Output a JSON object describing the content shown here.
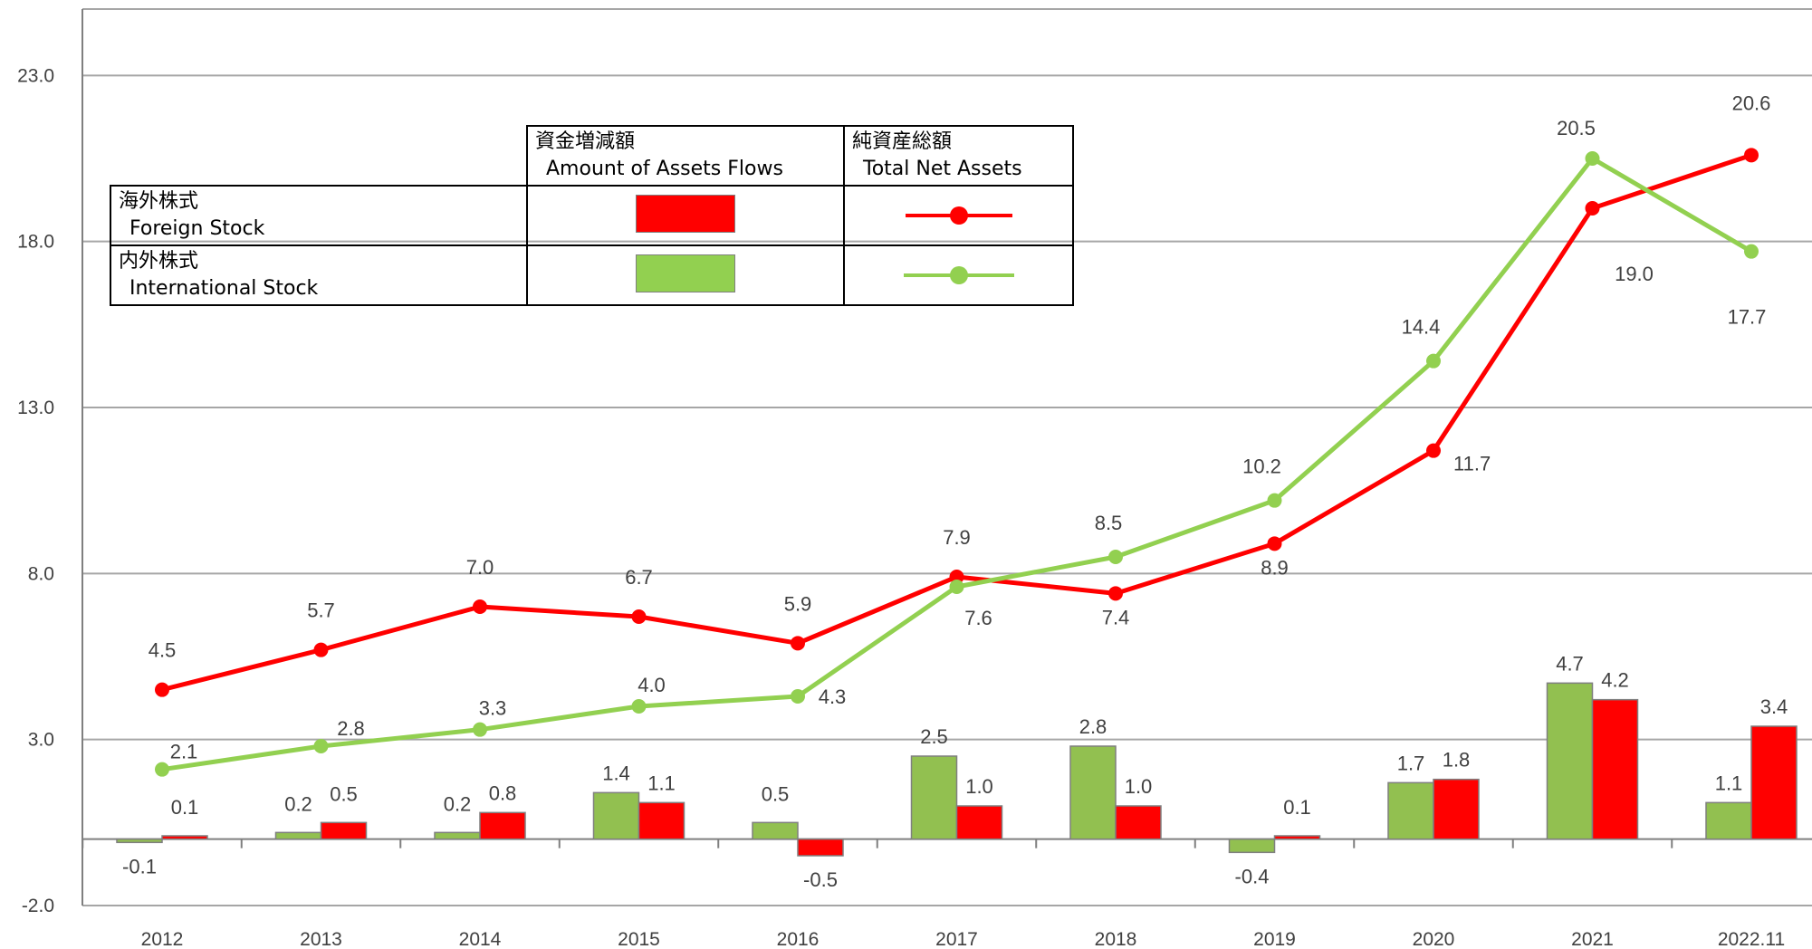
{
  "chart_data": {
    "type": "bar+line",
    "categories": [
      "2012",
      "2013",
      "2014",
      "2015",
      "2016",
      "2017",
      "2018",
      "2019",
      "2020",
      "2021",
      "2022.11"
    ],
    "bar_series": [
      {
        "key": "international",
        "color": "#92c050",
        "values": [
          -0.1,
          0.2,
          0.2,
          1.4,
          0.5,
          2.5,
          2.8,
          -0.4,
          1.7,
          4.7,
          1.1
        ]
      },
      {
        "key": "foreign",
        "color": "#ff0000",
        "values": [
          0.1,
          0.5,
          0.8,
          1.1,
          -0.5,
          1.0,
          1.0,
          0.1,
          1.8,
          4.2,
          3.4
        ]
      }
    ],
    "line_series": [
      {
        "key": "foreign",
        "color": "#ff0000",
        "values": [
          4.5,
          5.7,
          7.0,
          6.7,
          5.9,
          7.9,
          7.4,
          8.9,
          11.7,
          19.0,
          20.6
        ]
      },
      {
        "key": "international",
        "color": "#92d050",
        "values": [
          2.1,
          2.8,
          3.3,
          4.0,
          4.3,
          7.6,
          8.5,
          10.2,
          14.4,
          20.5,
          17.7
        ]
      }
    ],
    "y_ticks": [
      "-2.0",
      "3.0",
      "8.0",
      "13.0",
      "18.0",
      "23.0"
    ],
    "ylim": [
      -2,
      25
    ],
    "grid": true,
    "legend_position": "top-left",
    "legend": {
      "col_flows_jp": "資金増減額",
      "col_flows_en": "Amount of Assets Flows",
      "col_total_jp": "純資産総額",
      "col_total_en": "Total Net Assets",
      "row_foreign_jp": "海外株式",
      "row_foreign_en": "Foreign Stock",
      "row_international_jp": "内外株式",
      "row_international_en": "International Stock"
    }
  }
}
